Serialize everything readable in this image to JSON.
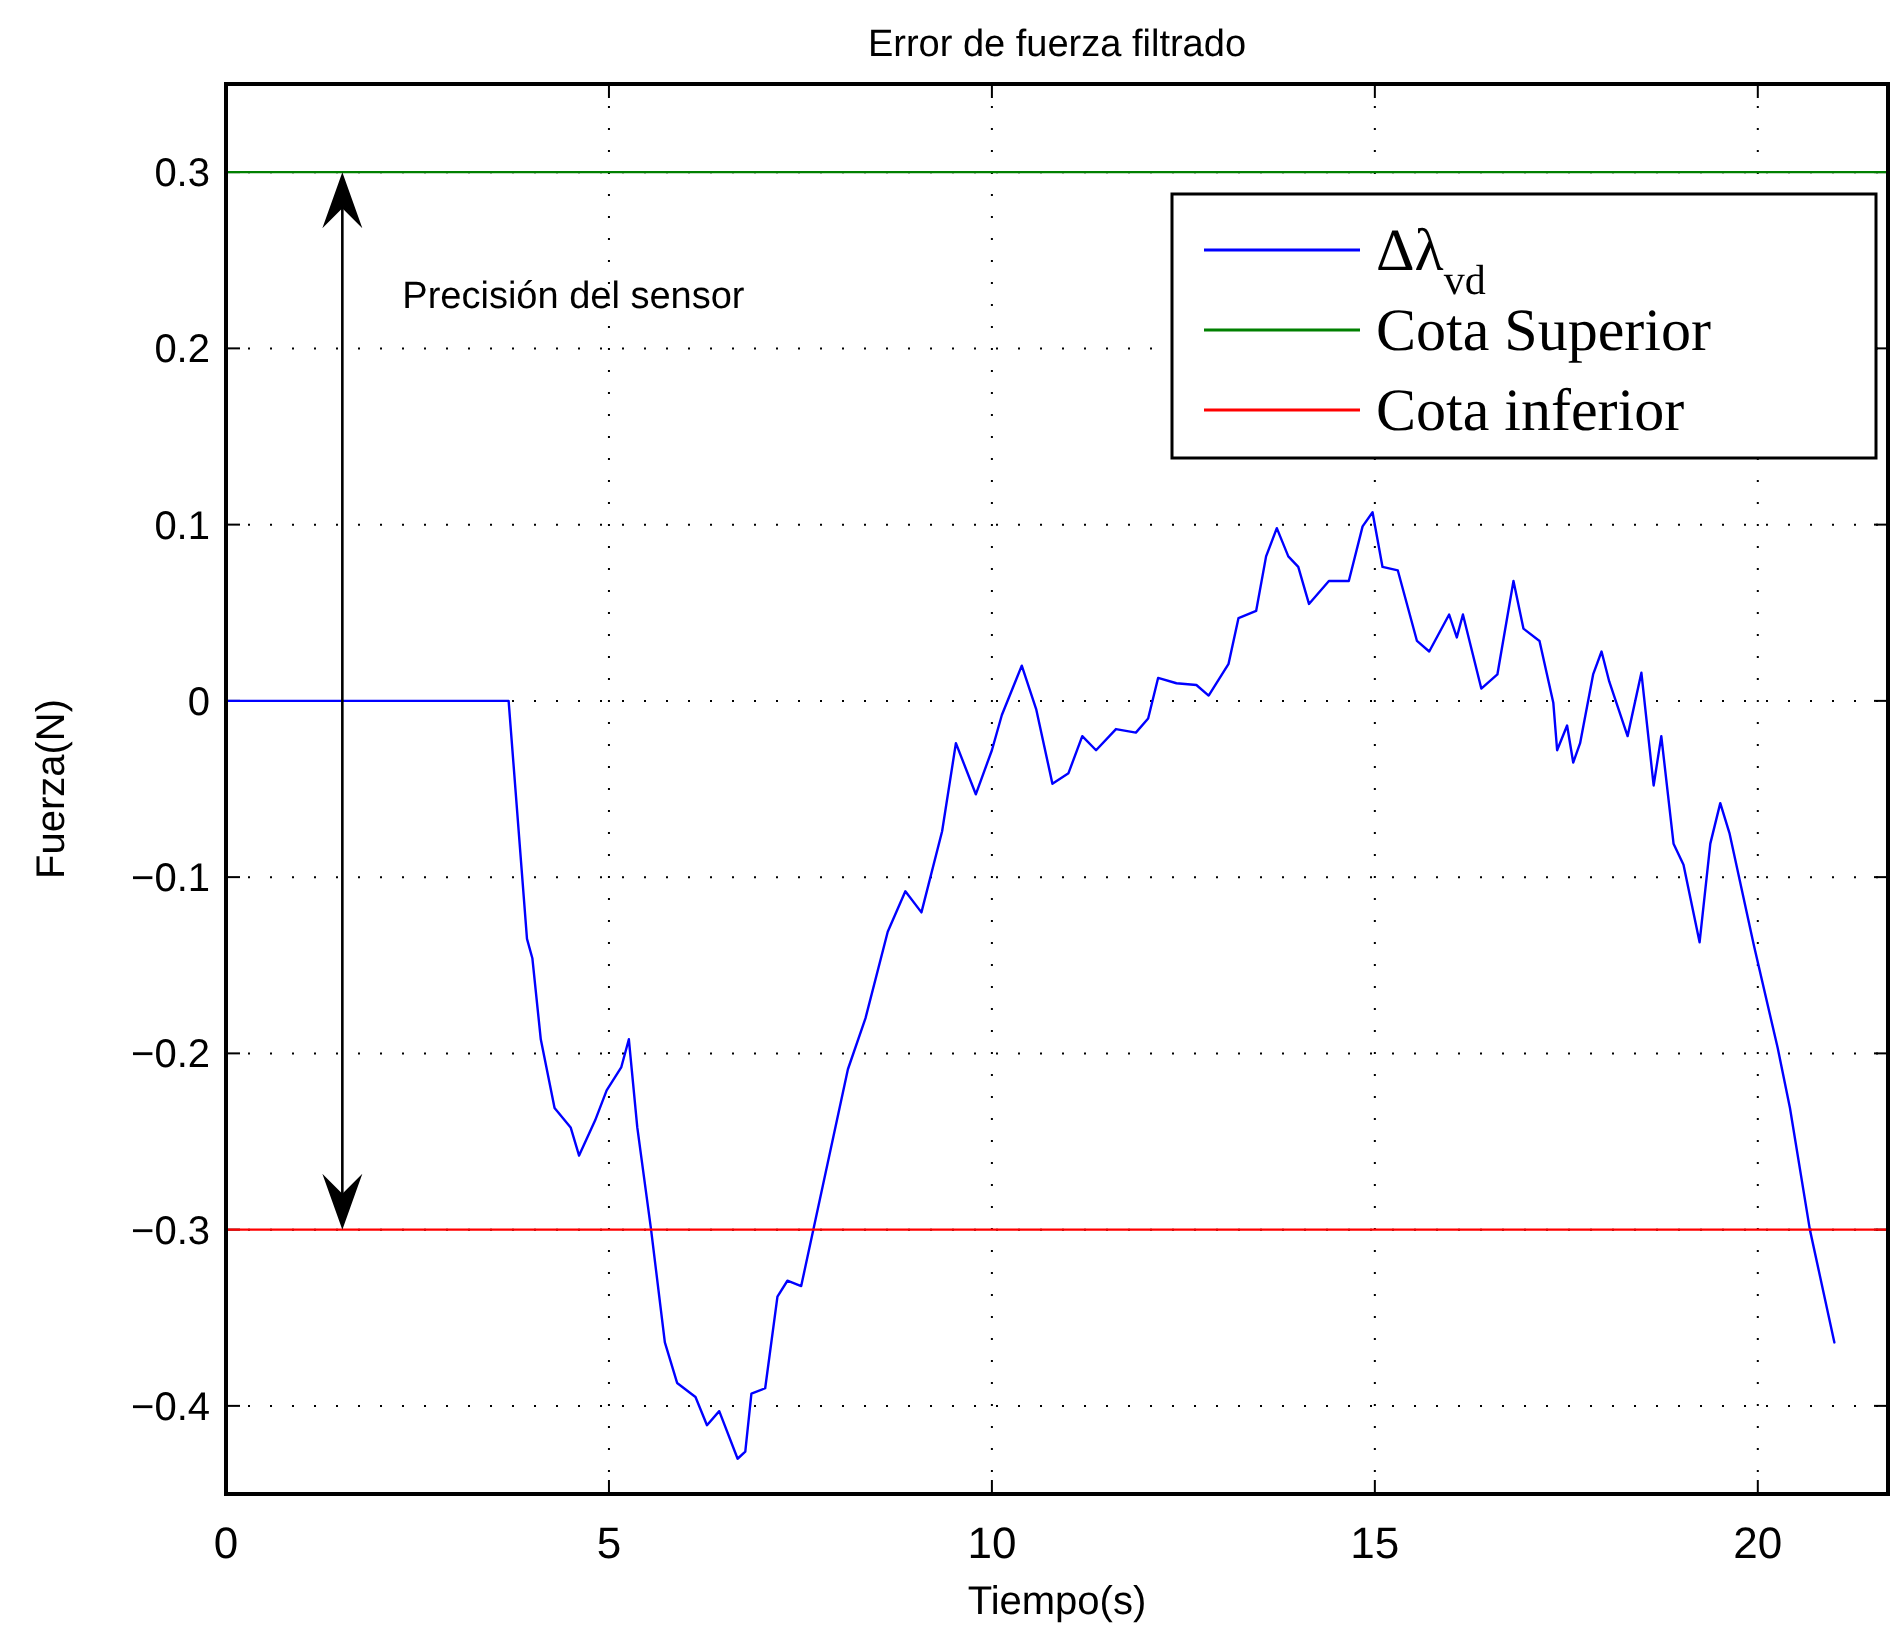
{
  "chart_data": {
    "type": "line",
    "title": "Error de fuerza filtrado",
    "xlabel": "Tiempo(s)",
    "ylabel": "Fuerza(N)",
    "annotations": [
      "Precisión del sensor"
    ],
    "xlim": [
      0,
      21.7
    ],
    "xticks": [
      0,
      5,
      10,
      15,
      20
    ],
    "ylim": [
      -0.45,
      0.35
    ],
    "yticks": [
      {
        "value": -0.4,
        "label": "−0.4"
      },
      {
        "value": -0.3,
        "label": "−0.3"
      },
      {
        "value": -0.2,
        "label": "−0.2"
      },
      {
        "value": -0.1,
        "label": "−0.1"
      },
      0,
      0.1,
      0.2,
      0.3
    ],
    "grid": true,
    "legend": "top right",
    "line_style": "solid",
    "marker": "none",
    "series": [
      {
        "name": "Δλ$_{vd}$",
        "color": "#0000ff",
        "x": [
          0,
          3.69,
          3.93,
          4.0,
          4.11,
          4.29,
          4.5,
          4.61,
          4.82,
          4.97,
          5.16,
          5.26,
          5.37,
          5.55,
          5.73,
          5.89,
          6.13,
          6.28,
          6.44,
          6.68,
          6.78,
          6.86,
          7.04,
          7.2,
          7.33,
          7.51,
          8.12,
          8.35,
          8.64,
          8.87,
          9.08,
          9.35,
          9.53,
          9.79,
          10.0,
          10.13,
          10.39,
          10.58,
          10.79,
          11.0,
          11.18,
          11.36,
          11.62,
          11.88,
          12.04,
          12.17,
          12.41,
          12.67,
          12.83,
          13.09,
          13.22,
          13.45,
          13.58,
          13.72,
          13.87,
          14.0,
          14.14,
          14.4,
          14.66,
          14.84,
          14.97,
          15.1,
          15.3,
          15.55,
          15.71,
          15.97,
          16.07,
          16.15,
          16.39,
          16.6,
          16.81,
          16.94,
          17.15,
          17.33,
          17.38,
          17.51,
          17.59,
          17.68,
          17.85,
          17.96,
          18.06,
          18.3,
          18.48,
          18.64,
          18.74,
          18.9,
          19.03,
          19.24,
          19.38,
          19.51,
          19.63,
          19.95,
          20.26,
          20.42,
          20.68,
          21.0
        ],
        "values": [
          0,
          0,
          -0.135,
          -0.146,
          -0.192,
          -0.231,
          -0.242,
          -0.258,
          -0.238,
          -0.221,
          -0.208,
          -0.192,
          -0.242,
          -0.3,
          -0.364,
          -0.387,
          -0.395,
          -0.411,
          -0.403,
          -0.43,
          -0.426,
          -0.393,
          -0.39,
          -0.338,
          -0.329,
          -0.332,
          -0.209,
          -0.18,
          -0.131,
          -0.108,
          -0.12,
          -0.074,
          -0.024,
          -0.053,
          -0.028,
          -0.008,
          0.02,
          -0.005,
          -0.047,
          -0.041,
          -0.02,
          -0.028,
          -0.016,
          -0.018,
          -0.01,
          0.013,
          0.01,
          0.009,
          0.003,
          0.021,
          0.047,
          0.051,
          0.082,
          0.098,
          0.082,
          0.076,
          0.055,
          0.068,
          0.068,
          0.099,
          0.107,
          0.076,
          0.074,
          0.034,
          0.028,
          0.049,
          0.036,
          0.049,
          0.007,
          0.015,
          0.068,
          0.041,
          0.034,
          -0.001,
          -0.028,
          -0.014,
          -0.035,
          -0.024,
          0.015,
          0.028,
          0.011,
          -0.02,
          0.016,
          -0.048,
          -0.02,
          -0.081,
          -0.093,
          -0.137,
          -0.081,
          -0.058,
          -0.075,
          -0.139,
          -0.197,
          -0.231,
          -0.3,
          -0.364
        ]
      },
      {
        "name": "Cota Superior",
        "color": "#008000",
        "x": [
          0,
          21.7
        ],
        "values": [
          0.3,
          0.3
        ]
      },
      {
        "name": "Cota inferior",
        "color": "#ff0000",
        "x": [
          0,
          21.7
        ],
        "values": [
          -0.3,
          -0.3
        ]
      }
    ]
  }
}
